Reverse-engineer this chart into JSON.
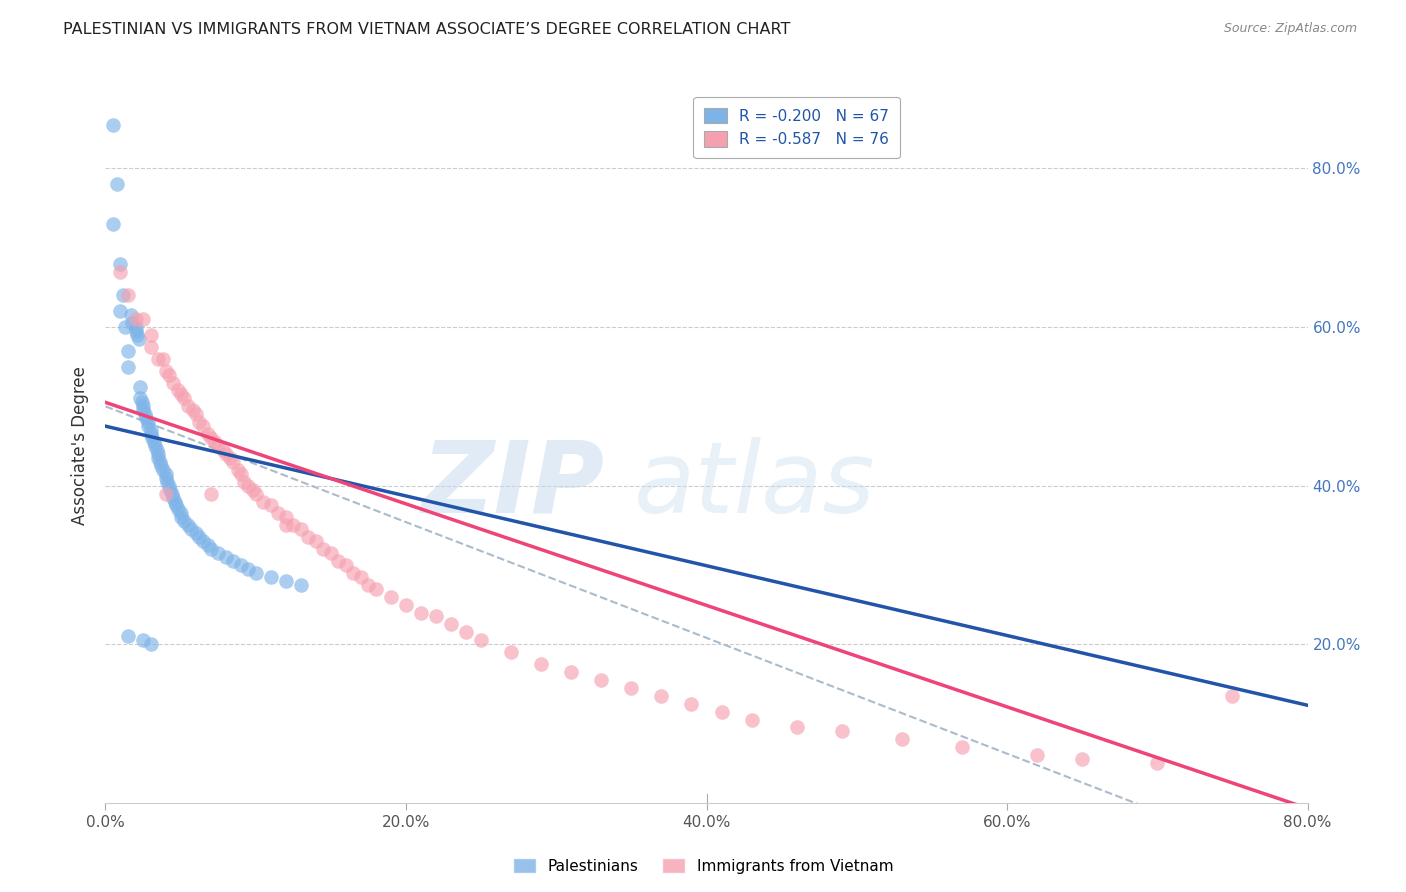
{
  "title": "PALESTINIAN VS IMMIGRANTS FROM VIETNAM ASSOCIATE’S DEGREE CORRELATION CHART",
  "source": "Source: ZipAtlas.com",
  "ylabel": "Associate's Degree",
  "x_tick_labels": [
    "0.0%",
    "20.0%",
    "40.0%",
    "60.0%",
    "80.0%"
  ],
  "x_tick_vals": [
    0.0,
    0.2,
    0.4,
    0.6,
    0.8
  ],
  "xlim": [
    0.0,
    0.8
  ],
  "ylim": [
    0.0,
    0.9
  ],
  "color_blue": "#7EB3E8",
  "color_pink": "#F5A0B0",
  "color_blue_line": "#2255AA",
  "color_pink_line": "#EE4477",
  "color_dashed": "#AABBCC",
  "legend_label1": "Palestinians",
  "legend_label2": "Immigrants from Vietnam",
  "blue_R": -0.2,
  "blue_N": 67,
  "pink_R": -0.587,
  "pink_N": 76,
  "blue_intercept": 0.475,
  "blue_slope": -0.44,
  "pink_intercept": 0.505,
  "pink_slope": -0.64,
  "dashed_intercept": 0.5,
  "dashed_slope": -0.73,
  "blue_scatter_x": [
    0.005,
    0.005,
    0.008,
    0.01,
    0.01,
    0.012,
    0.013,
    0.015,
    0.015,
    0.017,
    0.018,
    0.02,
    0.02,
    0.021,
    0.022,
    0.023,
    0.023,
    0.024,
    0.025,
    0.025,
    0.026,
    0.027,
    0.028,
    0.028,
    0.03,
    0.03,
    0.031,
    0.032,
    0.033,
    0.034,
    0.035,
    0.035,
    0.036,
    0.037,
    0.038,
    0.04,
    0.04,
    0.041,
    0.042,
    0.043,
    0.044,
    0.045,
    0.046,
    0.047,
    0.048,
    0.05,
    0.05,
    0.052,
    0.055,
    0.057,
    0.06,
    0.062,
    0.065,
    0.068,
    0.07,
    0.075,
    0.08,
    0.085,
    0.09,
    0.095,
    0.1,
    0.11,
    0.12,
    0.13,
    0.015,
    0.025,
    0.03
  ],
  "blue_scatter_y": [
    0.855,
    0.73,
    0.78,
    0.68,
    0.62,
    0.64,
    0.6,
    0.57,
    0.55,
    0.615,
    0.605,
    0.6,
    0.595,
    0.59,
    0.585,
    0.525,
    0.51,
    0.505,
    0.5,
    0.495,
    0.49,
    0.485,
    0.48,
    0.475,
    0.47,
    0.465,
    0.46,
    0.455,
    0.45,
    0.445,
    0.44,
    0.435,
    0.43,
    0.425,
    0.42,
    0.415,
    0.41,
    0.405,
    0.4,
    0.395,
    0.39,
    0.385,
    0.38,
    0.375,
    0.37,
    0.365,
    0.36,
    0.355,
    0.35,
    0.345,
    0.34,
    0.335,
    0.33,
    0.325,
    0.32,
    0.315,
    0.31,
    0.305,
    0.3,
    0.295,
    0.29,
    0.285,
    0.28,
    0.275,
    0.21,
    0.205,
    0.2
  ],
  "pink_scatter_x": [
    0.01,
    0.015,
    0.02,
    0.025,
    0.03,
    0.03,
    0.035,
    0.038,
    0.04,
    0.042,
    0.045,
    0.048,
    0.05,
    0.052,
    0.055,
    0.058,
    0.06,
    0.062,
    0.065,
    0.068,
    0.07,
    0.073,
    0.075,
    0.078,
    0.08,
    0.083,
    0.085,
    0.088,
    0.09,
    0.092,
    0.095,
    0.098,
    0.1,
    0.105,
    0.11,
    0.115,
    0.12,
    0.125,
    0.13,
    0.135,
    0.14,
    0.145,
    0.15,
    0.155,
    0.16,
    0.165,
    0.17,
    0.175,
    0.18,
    0.19,
    0.2,
    0.21,
    0.22,
    0.23,
    0.24,
    0.25,
    0.27,
    0.29,
    0.31,
    0.33,
    0.35,
    0.37,
    0.39,
    0.41,
    0.43,
    0.46,
    0.49,
    0.53,
    0.57,
    0.62,
    0.65,
    0.7,
    0.04,
    0.07,
    0.12,
    0.75
  ],
  "pink_scatter_y": [
    0.67,
    0.64,
    0.61,
    0.61,
    0.59,
    0.575,
    0.56,
    0.56,
    0.545,
    0.54,
    0.53,
    0.52,
    0.515,
    0.51,
    0.5,
    0.495,
    0.49,
    0.48,
    0.475,
    0.465,
    0.46,
    0.455,
    0.45,
    0.445,
    0.44,
    0.435,
    0.43,
    0.42,
    0.415,
    0.405,
    0.4,
    0.395,
    0.39,
    0.38,
    0.375,
    0.365,
    0.36,
    0.35,
    0.345,
    0.335,
    0.33,
    0.32,
    0.315,
    0.305,
    0.3,
    0.29,
    0.285,
    0.275,
    0.27,
    0.26,
    0.25,
    0.24,
    0.235,
    0.225,
    0.215,
    0.205,
    0.19,
    0.175,
    0.165,
    0.155,
    0.145,
    0.135,
    0.125,
    0.115,
    0.105,
    0.095,
    0.09,
    0.08,
    0.07,
    0.06,
    0.055,
    0.05,
    0.39,
    0.39,
    0.35,
    0.135
  ]
}
